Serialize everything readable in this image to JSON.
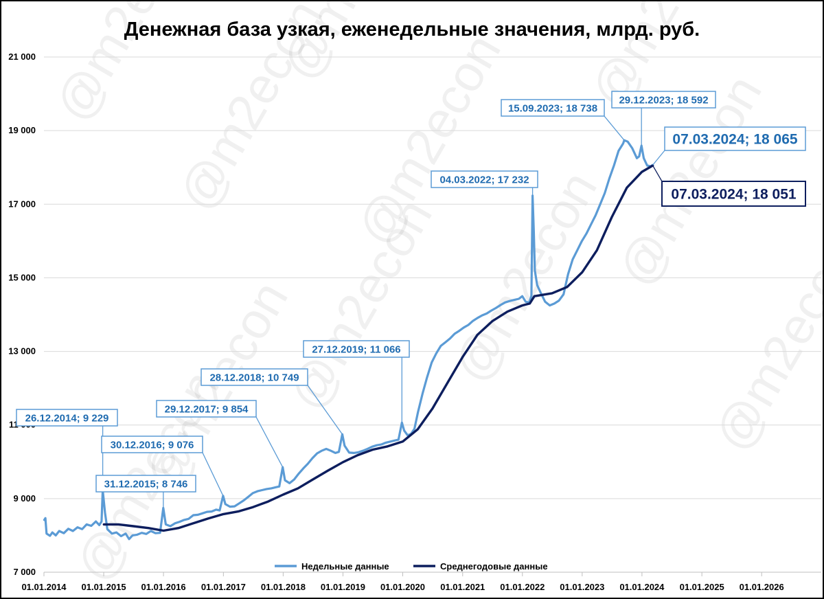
{
  "chart_data": {
    "type": "line",
    "title": "Денежная база узкая, еженедельные значения, млрд. руб.",
    "ylim": [
      7000,
      21000
    ],
    "yticks": [
      7000,
      9000,
      11000,
      13000,
      15000,
      17000,
      19000,
      21000
    ],
    "ytick_labels": [
      "7 000",
      "9 000",
      "11 000",
      "13 000",
      "15 000",
      "17 000",
      "19 000",
      "21 000"
    ],
    "xlim": [
      "2014-01-01",
      "2026-12-31"
    ],
    "xticks": [
      "2014-01-01",
      "2015-01-01",
      "2016-01-01",
      "2017-01-01",
      "2018-01-01",
      "2019-01-01",
      "2020-01-01",
      "2021-01-01",
      "2022-01-01",
      "2023-01-01",
      "2024-01-01",
      "2025-01-01",
      "2026-01-01"
    ],
    "xtick_labels": [
      "01.01.2014",
      "01.01.2015",
      "01.01.2016",
      "01.01.2017",
      "01.01.2018",
      "01.01.2019",
      "01.01.2020",
      "01.01.2021",
      "01.01.2022",
      "01.01.2023",
      "01.01.2024",
      "01.01.2025",
      "01.01.2026"
    ],
    "grid": "horizontal",
    "legend_position": "bottom",
    "series": [
      {
        "name": "Недельные данные",
        "color": "#5b9bd5",
        "points": [
          [
            "2014-01-03",
            8420
          ],
          [
            "2014-01-10",
            8470
          ],
          [
            "2014-01-17",
            8050
          ],
          [
            "2014-02-07",
            7990
          ],
          [
            "2014-02-21",
            8080
          ],
          [
            "2014-03-14",
            8000
          ],
          [
            "2014-04-04",
            8120
          ],
          [
            "2014-05-02",
            8060
          ],
          [
            "2014-05-30",
            8180
          ],
          [
            "2014-06-27",
            8120
          ],
          [
            "2014-07-25",
            8220
          ],
          [
            "2014-08-22",
            8170
          ],
          [
            "2014-09-19",
            8300
          ],
          [
            "2014-10-17",
            8260
          ],
          [
            "2014-11-14",
            8380
          ],
          [
            "2014-12-05",
            8280
          ],
          [
            "2014-12-19",
            8380
          ],
          [
            "2014-12-26",
            9229
          ],
          [
            "2015-01-09",
            8620
          ],
          [
            "2015-01-23",
            8170
          ],
          [
            "2015-02-20",
            8050
          ],
          [
            "2015-03-20",
            8080
          ],
          [
            "2015-04-17",
            7980
          ],
          [
            "2015-05-15",
            8050
          ],
          [
            "2015-06-05",
            7900
          ],
          [
            "2015-06-26",
            8000
          ],
          [
            "2015-07-24",
            8020
          ],
          [
            "2015-08-21",
            8070
          ],
          [
            "2015-09-18",
            8040
          ],
          [
            "2015-10-16",
            8120
          ],
          [
            "2015-11-13",
            8060
          ],
          [
            "2015-12-11",
            8070
          ],
          [
            "2015-12-31",
            8746
          ],
          [
            "2016-01-15",
            8300
          ],
          [
            "2016-02-12",
            8250
          ],
          [
            "2016-03-11",
            8330
          ],
          [
            "2016-04-08",
            8370
          ],
          [
            "2016-05-06",
            8420
          ],
          [
            "2016-06-03",
            8450
          ],
          [
            "2016-07-01",
            8550
          ],
          [
            "2016-07-29",
            8560
          ],
          [
            "2016-08-26",
            8600
          ],
          [
            "2016-09-23",
            8640
          ],
          [
            "2016-10-21",
            8650
          ],
          [
            "2016-11-18",
            8700
          ],
          [
            "2016-12-09",
            8680
          ],
          [
            "2016-12-30",
            9076
          ],
          [
            "2017-01-13",
            8850
          ],
          [
            "2017-02-10",
            8780
          ],
          [
            "2017-03-10",
            8790
          ],
          [
            "2017-04-07",
            8870
          ],
          [
            "2017-05-05",
            8950
          ],
          [
            "2017-06-02",
            9050
          ],
          [
            "2017-06-30",
            9150
          ],
          [
            "2017-07-28",
            9200
          ],
          [
            "2017-08-25",
            9230
          ],
          [
            "2017-09-22",
            9260
          ],
          [
            "2017-10-20",
            9280
          ],
          [
            "2017-11-17",
            9310
          ],
          [
            "2017-12-08",
            9330
          ],
          [
            "2017-12-29",
            9854
          ],
          [
            "2018-01-12",
            9500
          ],
          [
            "2018-02-09",
            9420
          ],
          [
            "2018-03-09",
            9520
          ],
          [
            "2018-04-06",
            9680
          ],
          [
            "2018-05-04",
            9820
          ],
          [
            "2018-06-01",
            9950
          ],
          [
            "2018-06-29",
            10100
          ],
          [
            "2018-07-27",
            10230
          ],
          [
            "2018-08-24",
            10300
          ],
          [
            "2018-09-21",
            10350
          ],
          [
            "2018-10-19",
            10300
          ],
          [
            "2018-11-16",
            10240
          ],
          [
            "2018-12-07",
            10270
          ],
          [
            "2018-12-28",
            10749
          ],
          [
            "2019-01-11",
            10440
          ],
          [
            "2019-02-08",
            10250
          ],
          [
            "2019-03-08",
            10240
          ],
          [
            "2019-04-05",
            10260
          ],
          [
            "2019-05-03",
            10300
          ],
          [
            "2019-05-31",
            10350
          ],
          [
            "2019-06-28",
            10410
          ],
          [
            "2019-07-26",
            10450
          ],
          [
            "2019-08-23",
            10470
          ],
          [
            "2019-09-20",
            10520
          ],
          [
            "2019-10-18",
            10550
          ],
          [
            "2019-11-15",
            10580
          ],
          [
            "2019-12-06",
            10600
          ],
          [
            "2019-12-27",
            11066
          ],
          [
            "2020-01-10",
            10850
          ],
          [
            "2020-01-31",
            10720
          ],
          [
            "2020-02-21",
            10760
          ],
          [
            "2020-03-13",
            10900
          ],
          [
            "2020-04-03",
            11350
          ],
          [
            "2020-05-01",
            11850
          ],
          [
            "2020-05-29",
            12300
          ],
          [
            "2020-06-26",
            12700
          ],
          [
            "2020-07-24",
            12950
          ],
          [
            "2020-08-21",
            13150
          ],
          [
            "2020-09-18",
            13250
          ],
          [
            "2020-10-16",
            13350
          ],
          [
            "2020-11-13",
            13480
          ],
          [
            "2020-12-11",
            13560
          ],
          [
            "2021-01-08",
            13650
          ],
          [
            "2021-02-05",
            13720
          ],
          [
            "2021-03-05",
            13830
          ],
          [
            "2021-04-02",
            13910
          ],
          [
            "2021-04-30",
            13980
          ],
          [
            "2021-05-28",
            14030
          ],
          [
            "2021-06-25",
            14110
          ],
          [
            "2021-07-23",
            14180
          ],
          [
            "2021-08-20",
            14260
          ],
          [
            "2021-09-17",
            14330
          ],
          [
            "2021-10-15",
            14370
          ],
          [
            "2021-11-12",
            14400
          ],
          [
            "2021-12-10",
            14430
          ],
          [
            "2021-12-31",
            14500
          ],
          [
            "2022-01-21",
            14350
          ],
          [
            "2022-02-11",
            14330
          ],
          [
            "2022-02-25",
            14500
          ],
          [
            "2022-03-04",
            17232
          ],
          [
            "2022-03-11",
            16300
          ],
          [
            "2022-03-18",
            15200
          ],
          [
            "2022-04-01",
            14800
          ],
          [
            "2022-04-22",
            14600
          ],
          [
            "2022-05-20",
            14350
          ],
          [
            "2022-06-17",
            14250
          ],
          [
            "2022-07-15",
            14300
          ],
          [
            "2022-08-12",
            14380
          ],
          [
            "2022-09-09",
            14550
          ],
          [
            "2022-10-07",
            15100
          ],
          [
            "2022-11-04",
            15500
          ],
          [
            "2022-12-02",
            15750
          ],
          [
            "2022-12-30",
            16000
          ],
          [
            "2023-01-27",
            16200
          ],
          [
            "2023-02-24",
            16450
          ],
          [
            "2023-03-24",
            16700
          ],
          [
            "2023-04-21",
            17000
          ],
          [
            "2023-05-19",
            17300
          ],
          [
            "2023-06-16",
            17700
          ],
          [
            "2023-07-14",
            18050
          ],
          [
            "2023-08-11",
            18450
          ],
          [
            "2023-09-08",
            18650
          ],
          [
            "2023-09-15",
            18738
          ],
          [
            "2023-10-06",
            18700
          ],
          [
            "2023-11-03",
            18520
          ],
          [
            "2023-12-01",
            18250
          ],
          [
            "2023-12-15",
            18300
          ],
          [
            "2023-12-29",
            18592
          ],
          [
            "2024-01-12",
            18250
          ],
          [
            "2024-02-02",
            18050
          ],
          [
            "2024-02-23",
            18030
          ],
          [
            "2024-03-07",
            18065
          ]
        ]
      },
      {
        "name": "Среднегодовые данные",
        "color": "#0d1e5e",
        "points": [
          [
            "2015-01-02",
            8300
          ],
          [
            "2015-04-01",
            8300
          ],
          [
            "2015-07-01",
            8250
          ],
          [
            "2015-10-01",
            8200
          ],
          [
            "2016-01-01",
            8130
          ],
          [
            "2016-04-01",
            8200
          ],
          [
            "2016-07-01",
            8330
          ],
          [
            "2016-10-01",
            8460
          ],
          [
            "2017-01-01",
            8580
          ],
          [
            "2017-04-01",
            8650
          ],
          [
            "2017-07-01",
            8770
          ],
          [
            "2017-10-01",
            8920
          ],
          [
            "2018-01-01",
            9110
          ],
          [
            "2018-04-01",
            9280
          ],
          [
            "2018-07-01",
            9520
          ],
          [
            "2018-10-01",
            9760
          ],
          [
            "2019-01-01",
            9990
          ],
          [
            "2019-04-01",
            10180
          ],
          [
            "2019-07-01",
            10330
          ],
          [
            "2019-10-01",
            10420
          ],
          [
            "2020-01-01",
            10550
          ],
          [
            "2020-04-01",
            10880
          ],
          [
            "2020-07-01",
            11450
          ],
          [
            "2020-10-01",
            12150
          ],
          [
            "2021-01-01",
            12850
          ],
          [
            "2021-04-01",
            13450
          ],
          [
            "2021-07-01",
            13820
          ],
          [
            "2021-10-01",
            14080
          ],
          [
            "2022-01-01",
            14250
          ],
          [
            "2022-02-15",
            14300
          ],
          [
            "2022-03-15",
            14500
          ],
          [
            "2022-07-01",
            14580
          ],
          [
            "2022-10-01",
            14750
          ],
          [
            "2023-01-01",
            15150
          ],
          [
            "2023-04-01",
            15750
          ],
          [
            "2023-07-01",
            16650
          ],
          [
            "2023-10-01",
            17450
          ],
          [
            "2024-01-01",
            17880
          ],
          [
            "2024-03-07",
            18051
          ]
        ]
      }
    ],
    "annotations": [
      {
        "text": "26.12.2014; 9 229",
        "date": "2014-12-26",
        "value": 9229,
        "series": 0
      },
      {
        "text": "31.12.2015; 8 746",
        "date": "2015-12-31",
        "value": 8746,
        "series": 0
      },
      {
        "text": "30.12.2016; 9 076",
        "date": "2016-12-30",
        "value": 9076,
        "series": 0
      },
      {
        "text": "29.12.2017; 9 854",
        "date": "2017-12-29",
        "value": 9854,
        "series": 0
      },
      {
        "text": "28.12.2018; 10 749",
        "date": "2018-12-28",
        "value": 10749,
        "series": 0
      },
      {
        "text": "27.12.2019; 11 066",
        "date": "2019-12-27",
        "value": 11066,
        "series": 0
      },
      {
        "text": "04.03.2022; 17 232",
        "date": "2022-03-04",
        "value": 17232,
        "series": 0
      },
      {
        "text": "15.09.2023; 18 738",
        "date": "2023-09-15",
        "value": 18738,
        "series": 0
      },
      {
        "text": "29.12.2023; 18 592",
        "date": "2023-12-29",
        "value": 18592,
        "series": 0
      },
      {
        "text": "07.03.2024; 18 065",
        "date": "2024-03-07",
        "value": 18065,
        "series": 0
      },
      {
        "text": "07.03.2024; 18 051",
        "date": "2024-03-07",
        "value": 18051,
        "series": 1
      }
    ],
    "watermark": "@m2econ"
  }
}
